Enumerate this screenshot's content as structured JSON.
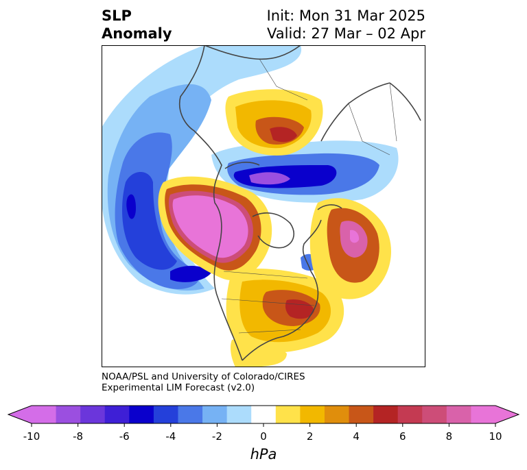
{
  "title": {
    "left_line1": "SLP",
    "left_line2": "Anomaly",
    "right_line1": "Init: Mon 31 Mar 2025",
    "right_line2": "Valid: 27 Mar – 02 Apr"
  },
  "credit": {
    "line1": "NOAA/PSL and University of Colorado/CIRES",
    "line2": "Experimental LIM Forecast (v2.0)"
  },
  "colorbar": {
    "unit": "hPa",
    "ticks": [
      "-10",
      "-8",
      "-6",
      "-4",
      "-2",
      "0",
      "2",
      "4",
      "6",
      "8",
      "10"
    ],
    "under_color": "#d46de8",
    "over_color": "#e874d8",
    "colors": [
      "#d46de8",
      "#9b4fe0",
      "#6b36db",
      "#3e1fd6",
      "#0a00cc",
      "#2440da",
      "#4a78e8",
      "#76b2f4",
      "#acdcfc",
      "#ffffff",
      "#ffe24a",
      "#f2b800",
      "#e08e0c",
      "#c85618",
      "#b42424",
      "#c43a52",
      "#cd4d78",
      "#d962aa",
      "#e874d8"
    ]
  },
  "map": {
    "projection": "north-polar-stereographic",
    "boundary_color": "#444444"
  }
}
